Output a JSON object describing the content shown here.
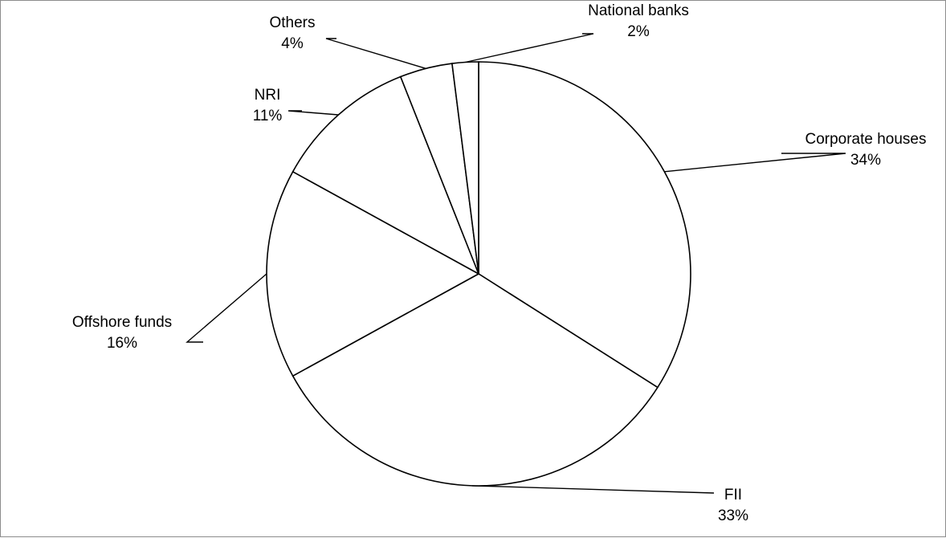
{
  "chart_data": {
    "type": "pie",
    "title": "",
    "slices": [
      {
        "label": "Corporate houses",
        "value": 34,
        "percent_label": "34%"
      },
      {
        "label": "FII",
        "value": 33,
        "percent_label": "33%"
      },
      {
        "label": "Offshore funds",
        "value": 16,
        "percent_label": "16%"
      },
      {
        "label": "NRI",
        "value": 11,
        "percent_label": "11%"
      },
      {
        "label": "Others",
        "value": 4,
        "percent_label": "4%"
      },
      {
        "label": "National banks",
        "value": 2,
        "percent_label": "2%"
      }
    ],
    "start_angle_deg": 0,
    "direction": "clockwise",
    "fill_color": "#ffffff",
    "stroke_color": "#000000",
    "legend": "none",
    "data_labels": "outside with leader lines"
  }
}
